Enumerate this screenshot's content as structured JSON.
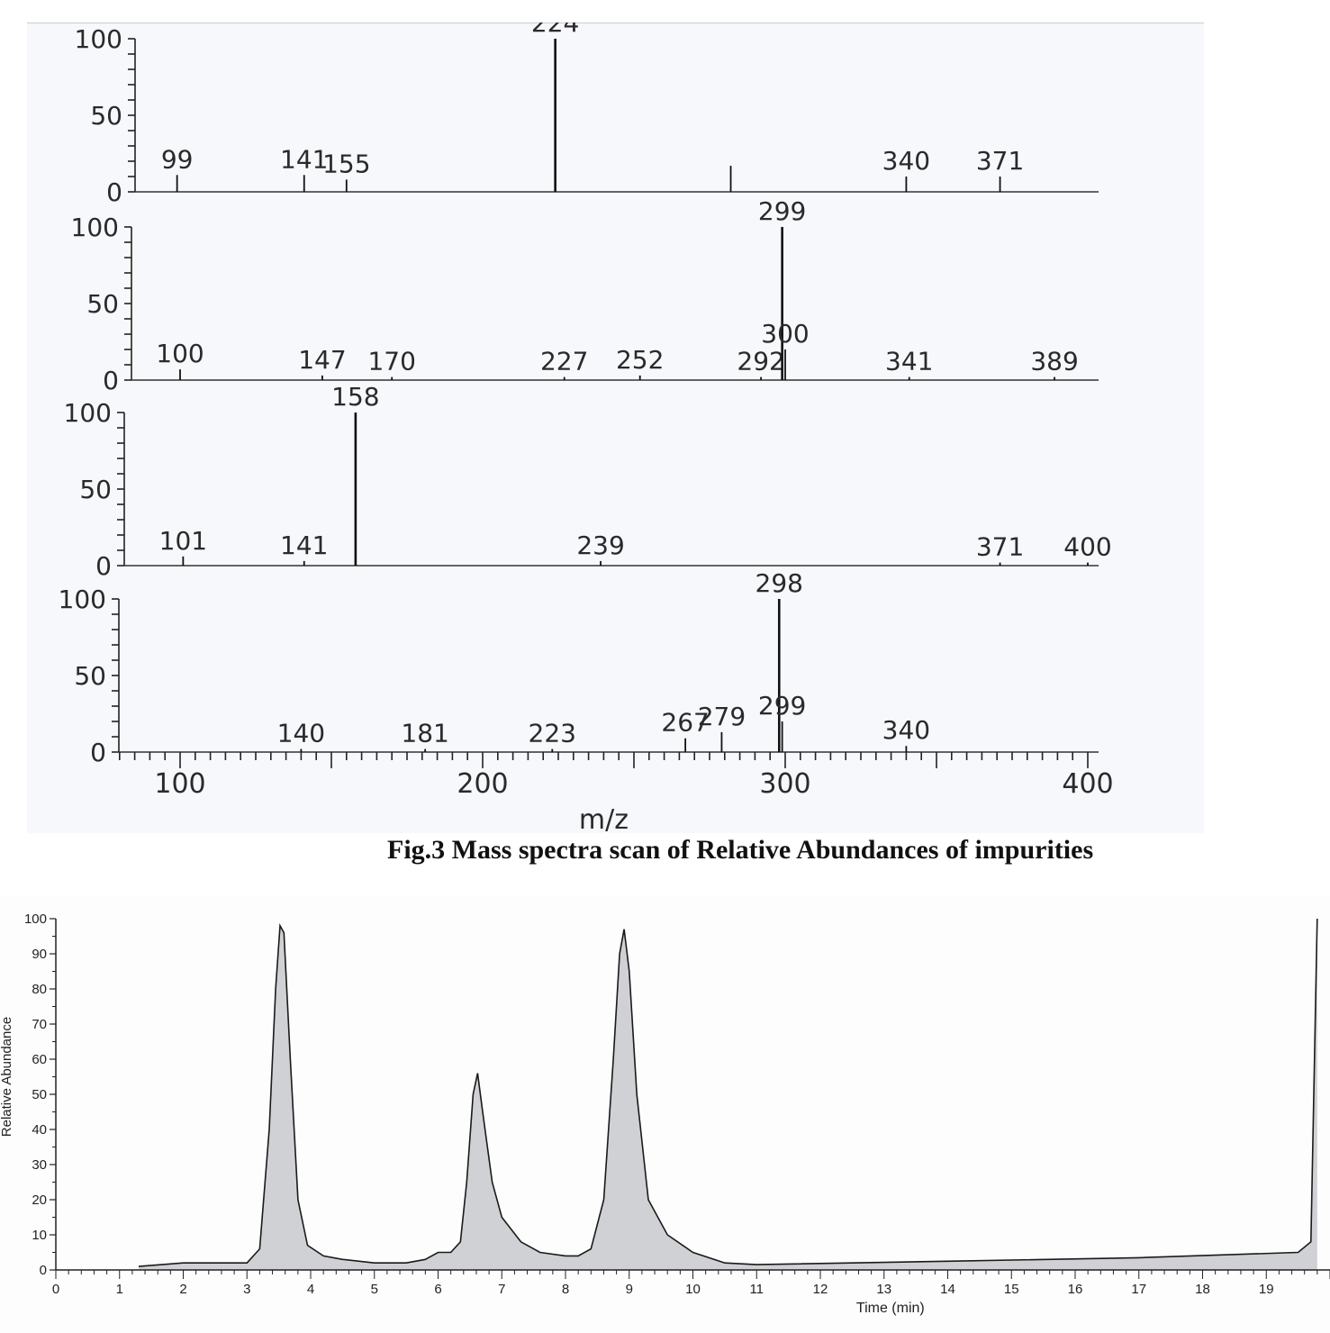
{
  "caption": "Fig.3 Mass spectra scan of Relative Abundances of impurities",
  "chart_data": [
    {
      "type": "bar",
      "xlabel": "m/z",
      "xlim": [
        80,
        400
      ],
      "x_ticks": [
        "100",
        "200",
        "300",
        "400"
      ],
      "panels": [
        {
          "y_ticks": [
            "0",
            "50",
            "100"
          ],
          "ylim": [
            0,
            100
          ],
          "peaks": [
            {
              "x": 99,
              "y": 11,
              "label": "99"
            },
            {
              "x": 141,
              "y": 11,
              "label": "141"
            },
            {
              "x": 155,
              "y": 8,
              "label": "155"
            },
            {
              "x": 224,
              "y": 100,
              "label": "224"
            },
            {
              "x": 282,
              "y": 17,
              "label": ""
            },
            {
              "x": 340,
              "y": 10,
              "label": "340"
            },
            {
              "x": 371,
              "y": 10,
              "label": "371"
            }
          ]
        },
        {
          "y_ticks": [
            "0",
            "50",
            "100"
          ],
          "ylim": [
            0,
            100
          ],
          "peaks": [
            {
              "x": 100,
              "y": 7,
              "label": "100"
            },
            {
              "x": 147,
              "y": 3,
              "label": "147"
            },
            {
              "x": 170,
              "y": 2,
              "label": "170"
            },
            {
              "x": 227,
              "y": 2,
              "label": "227"
            },
            {
              "x": 252,
              "y": 3,
              "label": "252"
            },
            {
              "x": 292,
              "y": 2,
              "label": "292"
            },
            {
              "x": 299,
              "y": 100,
              "label": "299"
            },
            {
              "x": 300,
              "y": 20,
              "label": "300"
            },
            {
              "x": 341,
              "y": 2,
              "label": "341"
            },
            {
              "x": 389,
              "y": 2,
              "label": "389"
            }
          ]
        },
        {
          "y_ticks": [
            "0",
            "50",
            "100"
          ],
          "ylim": [
            0,
            100
          ],
          "peaks": [
            {
              "x": 101,
              "y": 6,
              "label": "101"
            },
            {
              "x": 141,
              "y": 3,
              "label": "141"
            },
            {
              "x": 158,
              "y": 100,
              "label": "158"
            },
            {
              "x": 239,
              "y": 3,
              "label": "239"
            },
            {
              "x": 371,
              "y": 2,
              "label": "371"
            },
            {
              "x": 400,
              "y": 2,
              "label": "400"
            }
          ]
        },
        {
          "y_ticks": [
            "0",
            "50",
            "100"
          ],
          "ylim": [
            0,
            100
          ],
          "peaks": [
            {
              "x": 140,
              "y": 2,
              "label": "140"
            },
            {
              "x": 181,
              "y": 2,
              "label": "181"
            },
            {
              "x": 223,
              "y": 2,
              "label": "223"
            },
            {
              "x": 267,
              "y": 9,
              "label": "267"
            },
            {
              "x": 279,
              "y": 13,
              "label": "279"
            },
            {
              "x": 298,
              "y": 100,
              "label": "298"
            },
            {
              "x": 299,
              "y": 20,
              "label": "299"
            },
            {
              "x": 340,
              "y": 4,
              "label": "340"
            }
          ]
        }
      ]
    },
    {
      "type": "area",
      "xlabel": "Time (min)",
      "ylabel": "Relative Abundance",
      "xlim": [
        0,
        20
      ],
      "ylim": [
        0,
        100
      ],
      "x_ticks": [
        "0",
        "1",
        "2",
        "3",
        "4",
        "5",
        "6",
        "7",
        "8",
        "9",
        "10",
        "11",
        "12",
        "13",
        "14",
        "15",
        "16",
        "17",
        "18",
        "19"
      ],
      "y_ticks": [
        "0",
        "10",
        "20",
        "30",
        "40",
        "50",
        "60",
        "70",
        "80",
        "90",
        "100"
      ],
      "points": [
        [
          1.3,
          1
        ],
        [
          2.0,
          2
        ],
        [
          3.0,
          2
        ],
        [
          3.2,
          6
        ],
        [
          3.35,
          40
        ],
        [
          3.45,
          80
        ],
        [
          3.52,
          98
        ],
        [
          3.58,
          96
        ],
        [
          3.68,
          60
        ],
        [
          3.8,
          20
        ],
        [
          3.95,
          7
        ],
        [
          4.2,
          4
        ],
        [
          4.5,
          3
        ],
        [
          5.0,
          2
        ],
        [
          5.5,
          2
        ],
        [
          5.8,
          3
        ],
        [
          6.0,
          5
        ],
        [
          6.2,
          5
        ],
        [
          6.35,
          8
        ],
        [
          6.45,
          25
        ],
        [
          6.55,
          50
        ],
        [
          6.62,
          56
        ],
        [
          6.7,
          45
        ],
        [
          6.85,
          25
        ],
        [
          7.0,
          15
        ],
        [
          7.3,
          8
        ],
        [
          7.6,
          5
        ],
        [
          8.0,
          4
        ],
        [
          8.2,
          4
        ],
        [
          8.4,
          6
        ],
        [
          8.6,
          20
        ],
        [
          8.75,
          60
        ],
        [
          8.85,
          90
        ],
        [
          8.92,
          97
        ],
        [
          9.0,
          85
        ],
        [
          9.12,
          50
        ],
        [
          9.3,
          20
        ],
        [
          9.6,
          10
        ],
        [
          10.0,
          5
        ],
        [
          10.5,
          2
        ],
        [
          11.0,
          1.5
        ],
        [
          14.0,
          2.5
        ],
        [
          17.0,
          3.5
        ],
        [
          19.5,
          5
        ],
        [
          19.7,
          8
        ],
        [
          19.8,
          100
        ]
      ]
    }
  ]
}
